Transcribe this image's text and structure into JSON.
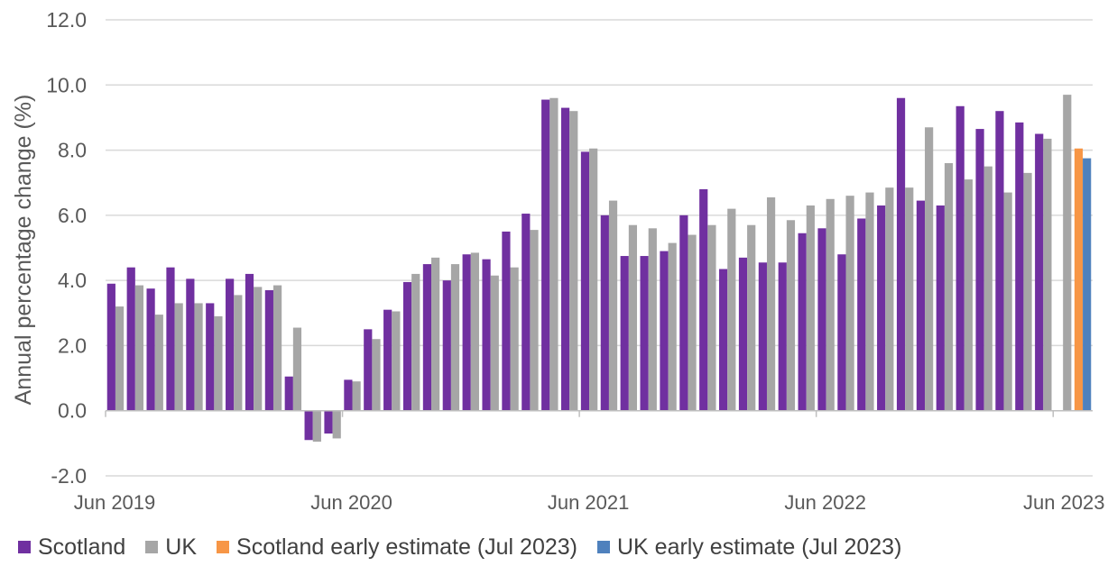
{
  "chart_data": {
    "type": "bar",
    "ylabel": "Annual percentage change (%)",
    "ylim": [
      -2.0,
      12.0
    ],
    "yticks": [
      "-2.0",
      "0.0",
      "2.0",
      "4.0",
      "6.0",
      "8.0",
      "10.0",
      "12.0"
    ],
    "xtick_labels": [
      "Jun 2019",
      "Jun 2020",
      "Jun 2021",
      "Jun 2022",
      "Jun 2023"
    ],
    "grid": "horizontal",
    "legend_position": "bottom",
    "categories": [
      "Jun 2019",
      "Jul 2019",
      "Aug 2019",
      "Sep 2019",
      "Oct 2019",
      "Nov 2019",
      "Dec 2019",
      "Jan 2020",
      "Feb 2020",
      "Mar 2020",
      "Apr 2020",
      "May 2020",
      "Jun 2020",
      "Jul 2020",
      "Aug 2020",
      "Sep 2020",
      "Oct 2020",
      "Nov 2020",
      "Dec 2020",
      "Jan 2021",
      "Feb 2021",
      "Mar 2021",
      "Apr 2021",
      "May 2021",
      "Jun 2021",
      "Jul 2021",
      "Aug 2021",
      "Sep 2021",
      "Oct 2021",
      "Nov 2021",
      "Dec 2021",
      "Jan 2022",
      "Feb 2022",
      "Mar 2022",
      "Apr 2022",
      "May 2022",
      "Jun 2022",
      "Jul 2022",
      "Aug 2022",
      "Sep 2022",
      "Oct 2022",
      "Nov 2022",
      "Dec 2022",
      "Jan 2023",
      "Feb 2023",
      "Mar 2023",
      "Apr 2023",
      "May 2023",
      "Jun 2023",
      "Jul 2023"
    ],
    "series": [
      {
        "name": "Scotland",
        "color": "#7030a0",
        "values": [
          3.9,
          4.4,
          3.75,
          4.4,
          4.05,
          3.3,
          4.05,
          4.2,
          3.7,
          1.05,
          -0.9,
          -0.7,
          0.95,
          2.5,
          3.1,
          3.95,
          4.5,
          4.0,
          4.8,
          4.65,
          5.5,
          6.05,
          9.55,
          9.3,
          7.95,
          6.0,
          4.75,
          4.75,
          4.9,
          6.0,
          6.8,
          4.35,
          4.7,
          4.55,
          4.55,
          5.45,
          5.6,
          4.8,
          5.9,
          6.3,
          9.6,
          6.45,
          6.3,
          9.35,
          8.65,
          9.2,
          8.85,
          8.5,
          null,
          null
        ]
      },
      {
        "name": "UK",
        "color": "#a6a6a6",
        "values": [
          3.2,
          3.85,
          2.95,
          3.3,
          3.3,
          2.9,
          3.55,
          3.8,
          3.85,
          2.55,
          -0.95,
          -0.85,
          0.9,
          2.2,
          3.05,
          4.2,
          4.7,
          4.5,
          4.85,
          4.15,
          4.4,
          5.55,
          9.6,
          9.2,
          8.05,
          6.45,
          5.7,
          5.6,
          5.15,
          5.4,
          5.7,
          6.2,
          5.7,
          6.55,
          5.85,
          6.3,
          6.5,
          6.6,
          6.7,
          6.85,
          6.85,
          8.7,
          7.6,
          7.1,
          7.5,
          6.7,
          7.3,
          8.35,
          9.7,
          null
        ]
      },
      {
        "name": "Scotland early estimate (Jul 2023)",
        "color": "#f79646",
        "values": [
          null,
          null,
          null,
          null,
          null,
          null,
          null,
          null,
          null,
          null,
          null,
          null,
          null,
          null,
          null,
          null,
          null,
          null,
          null,
          null,
          null,
          null,
          null,
          null,
          null,
          null,
          null,
          null,
          null,
          null,
          null,
          null,
          null,
          null,
          null,
          null,
          null,
          null,
          null,
          null,
          null,
          null,
          null,
          null,
          null,
          null,
          null,
          null,
          null,
          8.05
        ]
      },
      {
        "name": "UK early estimate (Jul 2023)",
        "color": "#4f81bd",
        "values": [
          null,
          null,
          null,
          null,
          null,
          null,
          null,
          null,
          null,
          null,
          null,
          null,
          null,
          null,
          null,
          null,
          null,
          null,
          null,
          null,
          null,
          null,
          null,
          null,
          null,
          null,
          null,
          null,
          null,
          null,
          null,
          null,
          null,
          null,
          null,
          null,
          null,
          null,
          null,
          null,
          null,
          null,
          null,
          null,
          null,
          null,
          null,
          null,
          null,
          7.75
        ]
      }
    ]
  }
}
